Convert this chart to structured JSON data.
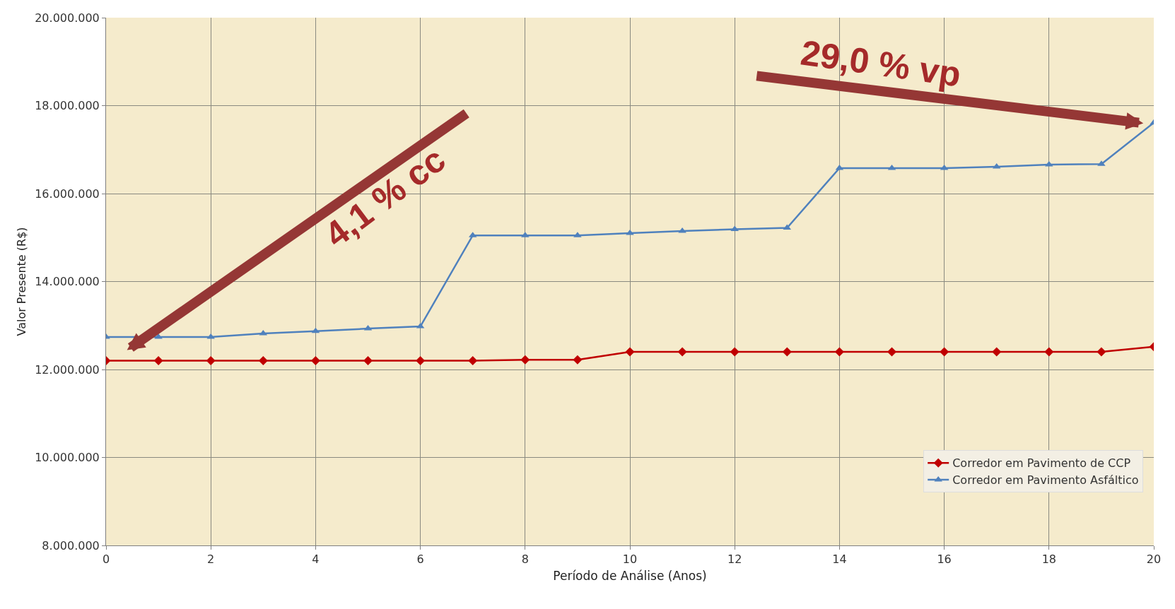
{
  "chart_data": {
    "type": "line",
    "xlabel": "Período de Análise (Anos)",
    "ylabel": "Valor Presente (R$)",
    "x": [
      0,
      1,
      2,
      3,
      4,
      5,
      6,
      7,
      8,
      9,
      10,
      11,
      12,
      13,
      14,
      15,
      16,
      17,
      18,
      19,
      20
    ],
    "series": [
      {
        "name": "Corredor em Pavimento de CCP",
        "color": "#c00000",
        "marker": "diamond",
        "values": [
          12200000,
          12200000,
          12200000,
          12200000,
          12200000,
          12200000,
          12200000,
          12200000,
          12220000,
          12220000,
          12400000,
          12400000,
          12400000,
          12400000,
          12400000,
          12400000,
          12400000,
          12400000,
          12400000,
          12400000,
          12520000
        ]
      },
      {
        "name": "Corredor em Pavimento Asfáltico",
        "color": "#4f81bd",
        "marker": "triangle",
        "values": [
          12740000,
          12740000,
          12740000,
          12820000,
          12870000,
          12930000,
          12980000,
          15050000,
          15050000,
          15050000,
          15100000,
          15150000,
          15190000,
          15220000,
          16580000,
          16580000,
          16580000,
          16610000,
          16660000,
          16670000,
          17610000
        ]
      }
    ],
    "xlim": [
      0,
      20
    ],
    "xticks": [
      0,
      2,
      4,
      6,
      8,
      10,
      12,
      14,
      16,
      18,
      20
    ],
    "ylim": [
      8000000,
      20000000
    ],
    "yticks": [
      {
        "value": 8000000,
        "label": "8.000.000"
      },
      {
        "value": 10000000,
        "label": "10.000.000"
      },
      {
        "value": 12000000,
        "label": "12.000.000"
      },
      {
        "value": 14000000,
        "label": "14.000.000"
      },
      {
        "value": 16000000,
        "label": "16.000.000"
      },
      {
        "value": 18000000,
        "label": "18.000.000"
      },
      {
        "value": 20000000,
        "label": "20.000.000"
      }
    ],
    "annotations": [
      "4,1 % cc",
      "29,0 % vp"
    ],
    "grid": true,
    "legend": "bottom right"
  }
}
